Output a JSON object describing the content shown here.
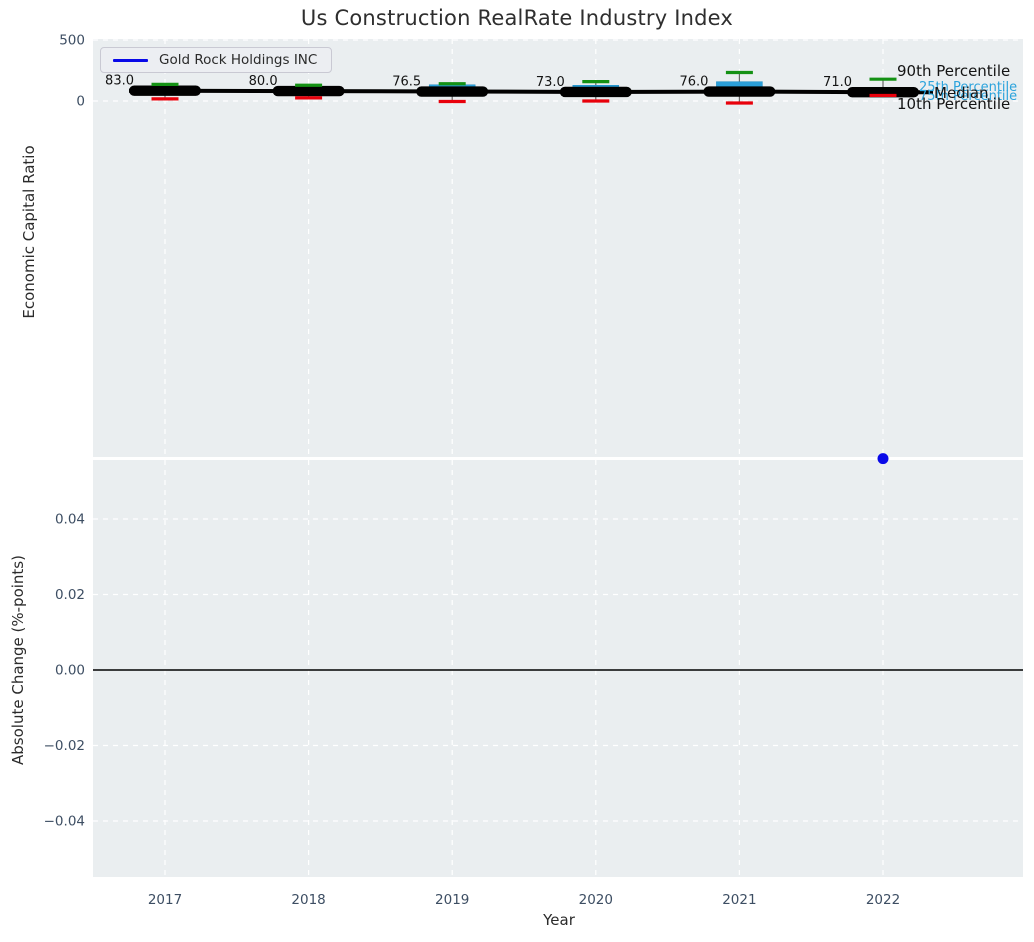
{
  "figure": {
    "title": "Us Construction RealRate Industry Index",
    "plot_background": "#eaeef0",
    "grid_color": "#ffffff"
  },
  "legend": {
    "label": "Gold Rock Holdings INC",
    "line_color": "#0909e8"
  },
  "top_plot": {
    "ylabel": "Economic Capital Ratio",
    "yticks": [
      {
        "value": 500,
        "label": "500"
      },
      {
        "value": 0,
        "label": "0"
      }
    ],
    "annotations": {
      "p90": "90th Percentile",
      "p25": "25th Percentile",
      "median": "Median",
      "p75": "75th Percentile",
      "p10": "10th Percentile"
    }
  },
  "bottom_plot": {
    "ylabel": "Absolute Change (%-points)",
    "xlabel": "Year",
    "yticks": [
      {
        "value": 0.04,
        "label": "0.04"
      },
      {
        "value": 0.02,
        "label": "0.02"
      },
      {
        "value": 0,
        "label": "0.00"
      },
      {
        "value": -0.02,
        "label": "−0.02"
      },
      {
        "value": -0.04,
        "label": "−0.04"
      }
    ]
  },
  "chart_data": [
    {
      "type": "boxplot",
      "title": "Us Construction RealRate Industry Index",
      "xlabel": "Year",
      "ylabel": "Economic Capital Ratio",
      "categories": [
        2017,
        2018,
        2019,
        2020,
        2021,
        2022
      ],
      "ytick_values": [
        0,
        500
      ],
      "ylim": [
        -3100,
        500
      ],
      "grid": true,
      "legend_entries": [
        "Gold Rock Holdings INC"
      ],
      "legend_position": "upper left",
      "boxes": [
        {
          "year": 2017,
          "p10": 17,
          "p25": 60,
          "median": 83.0,
          "p75": 115,
          "p90": 134,
          "median_label": "83.0"
        },
        {
          "year": 2018,
          "p10": 25,
          "p25": 58,
          "median": 80.0,
          "p75": 105,
          "p90": 127,
          "median_label": "80.0"
        },
        {
          "year": 2019,
          "p10": -4,
          "p25": 55,
          "median": 76.5,
          "p75": 131,
          "p90": 139,
          "median_label": "76.5"
        },
        {
          "year": 2020,
          "p10": 0,
          "p25": 50,
          "median": 73.0,
          "p75": 127,
          "p90": 156,
          "median_label": "73.0"
        },
        {
          "year": 2021,
          "p10": -16,
          "p25": 72,
          "median": 76.0,
          "p75": 156,
          "p90": 230,
          "median_label": "76.0"
        },
        {
          "year": 2022,
          "p10": 45,
          "p25": 55,
          "median": 71.0,
          "p75": 110,
          "p90": 176,
          "median_label": "71.0"
        }
      ],
      "colors": {
        "box": "#2b9fd9",
        "median_line": "#000000",
        "p90_cap": "#149114",
        "p10_cap": "#e8000b",
        "whisker": "#666666"
      }
    },
    {
      "type": "scatter",
      "xlabel": "Year",
      "ylabel": "Absolute Change (%-points)",
      "categories": [
        2017,
        2018,
        2019,
        2020,
        2021,
        2022
      ],
      "ytick_values": [
        0.04,
        0.02,
        0,
        -0.02,
        -0.04
      ],
      "ylim": [
        -0.056,
        0.057
      ],
      "grid": true,
      "zero_line": 0,
      "series": [
        {
          "name": "Gold Rock Holdings INC",
          "color": "#0909e8",
          "points": [
            {
              "x": 2022,
              "y": 0.056
            }
          ]
        }
      ]
    }
  ]
}
